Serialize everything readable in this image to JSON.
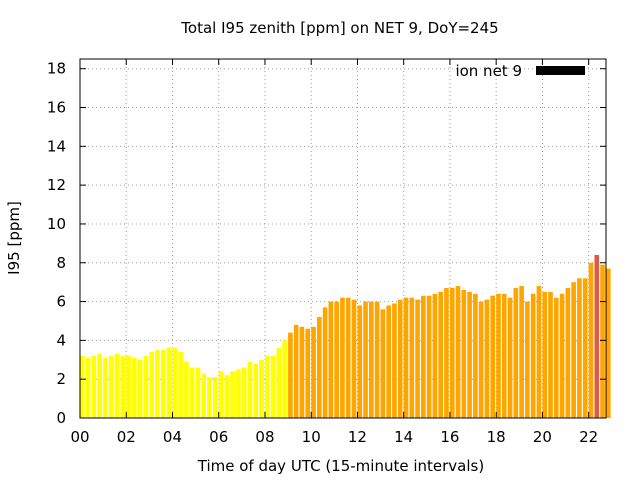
{
  "chart_data": {
    "type": "bar",
    "title": "Total I95 zenith [ppm] on NET 9, DoY=245",
    "xlabel": "Time of day UTC (15-minute intervals)",
    "ylabel": "I95 [ppm]",
    "xlim": [
      0,
      22.75
    ],
    "ylim": [
      0,
      18.5
    ],
    "xticks": [
      "00",
      "02",
      "04",
      "06",
      "08",
      "10",
      "12",
      "14",
      "16",
      "18",
      "20",
      "22"
    ],
    "yticks": [
      "0",
      "2",
      "4",
      "6",
      "8",
      "10",
      "12",
      "14",
      "16",
      "18"
    ],
    "grid": true,
    "legend": {
      "label": "ion net 9",
      "position": "top-right",
      "color": "#000000"
    },
    "interval_hours": 0.25,
    "x_start_hour": 0,
    "colors": {
      "low": "#ffff00",
      "medium": "#ffa500",
      "high": "#e05a4a"
    },
    "series": [
      {
        "values": [
          3.2,
          3.1,
          3.2,
          3.3,
          3.1,
          3.2,
          3.3,
          3.2,
          3.2,
          3.1,
          3.0,
          3.2,
          3.4,
          3.5,
          3.5,
          3.6,
          3.6,
          3.4,
          2.9,
          2.6,
          2.6,
          2.3,
          2.1,
          2.1,
          2.4,
          2.2,
          2.4,
          2.5,
          2.6,
          2.9,
          2.8,
          3.0,
          3.2,
          3.2,
          3.6,
          4.0,
          4.4,
          4.8,
          4.7,
          4.6,
          4.7,
          5.2,
          5.7,
          6.0,
          6.0,
          6.2,
          6.2,
          6.1,
          5.8,
          6.0,
          6.0,
          6.0,
          5.6,
          5.8,
          5.9,
          6.1,
          6.2,
          6.2,
          6.1,
          6.3,
          6.3,
          6.4,
          6.5,
          6.7,
          6.7,
          6.8,
          6.6,
          6.5,
          6.4,
          6.0,
          6.1,
          6.3,
          6.4,
          6.4,
          6.2,
          6.7,
          6.8,
          6.0,
          6.4,
          6.8,
          6.5,
          6.5,
          6.2,
          6.4,
          6.7,
          7.0,
          7.2,
          7.2,
          8.0,
          8.4,
          7.9,
          7.7
        ],
        "categories": [
          "low",
          "low",
          "low",
          "low",
          "low",
          "low",
          "low",
          "low",
          "low",
          "low",
          "low",
          "low",
          "low",
          "low",
          "low",
          "low",
          "low",
          "low",
          "low",
          "low",
          "low",
          "low",
          "low",
          "low",
          "low",
          "low",
          "low",
          "low",
          "low",
          "low",
          "low",
          "low",
          "low",
          "low",
          "low",
          "low",
          "medium",
          "medium",
          "medium",
          "medium",
          "medium",
          "medium",
          "medium",
          "medium",
          "medium",
          "medium",
          "medium",
          "medium",
          "medium",
          "medium",
          "medium",
          "medium",
          "medium",
          "medium",
          "medium",
          "medium",
          "medium",
          "medium",
          "medium",
          "medium",
          "medium",
          "medium",
          "medium",
          "medium",
          "medium",
          "medium",
          "medium",
          "medium",
          "medium",
          "medium",
          "medium",
          "medium",
          "medium",
          "medium",
          "medium",
          "medium",
          "medium",
          "medium",
          "medium",
          "medium",
          "medium",
          "medium",
          "medium",
          "medium",
          "medium",
          "medium",
          "medium",
          "medium",
          "medium",
          "high",
          "medium",
          "medium"
        ]
      }
    ]
  }
}
